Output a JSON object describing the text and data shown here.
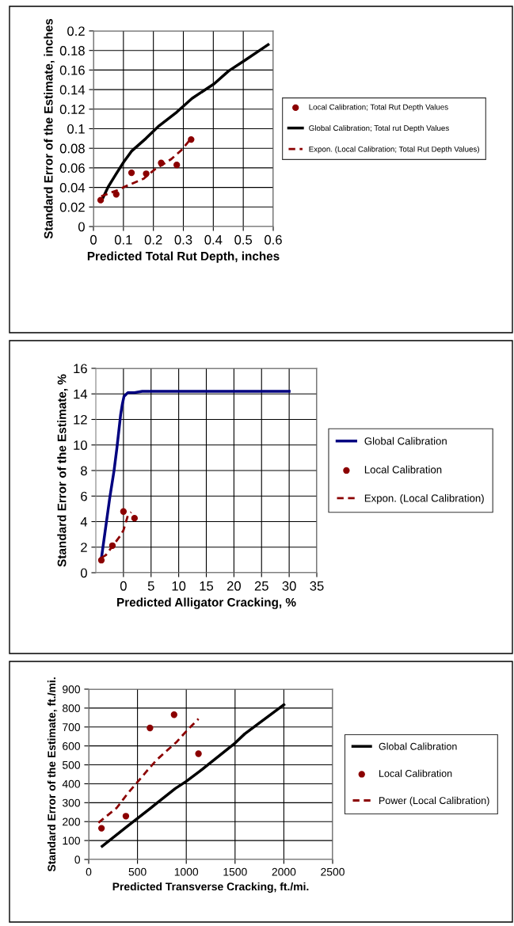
{
  "chart_data": [
    {
      "type": "line",
      "xlabel": "Predicted Total Rut Depth, inches",
      "ylabel": "Standard Error of the Estimate, inches",
      "xlim": [
        0,
        0.6
      ],
      "xticks": [
        0,
        0.1,
        0.2,
        0.3,
        0.4,
        0.5,
        0.6
      ],
      "ylim": [
        0,
        0.2
      ],
      "yticks": [
        0,
        0.02,
        0.04,
        0.06,
        0.08,
        0.1,
        0.12,
        0.14,
        0.16,
        0.18,
        0.2
      ],
      "grid": true,
      "legend": "right",
      "series": [
        {
          "name": "Local Calibration; Total Rut Depth Values",
          "type": "scatter",
          "marker": "circle",
          "color": "#8b0000",
          "x": [
            0.024,
            0.076,
            0.127,
            0.176,
            0.226,
            0.278,
            0.326
          ],
          "values": [
            0.027,
            0.033,
            0.055,
            0.054,
            0.065,
            0.063,
            0.089
          ]
        },
        {
          "name": "Global Calibration; Total rut Depth Values",
          "line_style": "solid",
          "color": "#000000",
          "x": [
            0.028,
            0.05,
            0.076,
            0.101,
            0.127,
            0.175,
            0.219,
            0.278,
            0.329,
            0.403,
            0.451,
            0.506,
            0.583
          ],
          "values": [
            0.027,
            0.041,
            0.054,
            0.066,
            0.077,
            0.09,
            0.103,
            0.117,
            0.131,
            0.146,
            0.159,
            0.17,
            0.186
          ]
        },
        {
          "name": "Expon. (Local Calibration; Total Rut Depth Values)",
          "line_style": "dashed",
          "color": "#8b0000",
          "x": [
            0.026,
            0.079,
            0.114,
            0.168,
            0.203,
            0.26,
            0.293,
            0.326
          ],
          "values": [
            0.031,
            0.037,
            0.042,
            0.049,
            0.058,
            0.069,
            0.078,
            0.09
          ]
        }
      ]
    },
    {
      "type": "line",
      "xlabel": "Predicted Alligator Cracking, %",
      "ylabel": "Standard Error of the Estimate, %",
      "xlim": [
        -5,
        35
      ],
      "xticks": [
        0,
        5,
        10,
        15,
        20,
        25,
        30,
        35
      ],
      "ylim": [
        0,
        16
      ],
      "yticks": [
        0,
        2,
        4,
        6,
        8,
        10,
        12,
        14,
        16
      ],
      "grid": true,
      "legend": "right",
      "series": [
        {
          "name": "Global Calibration",
          "line_style": "solid",
          "color": "#000080",
          "x": [
            -4.0,
            -2.5,
            -1.7,
            -1.2,
            -0.5,
            -0.2,
            0.1,
            0.8,
            2.0,
            3.4,
            30
          ],
          "values": [
            1.1,
            5.8,
            8.0,
            9.7,
            12.4,
            13.2,
            13.8,
            14.1,
            14.1,
            14.2,
            14.2
          ]
        },
        {
          "name": "Local Calibration",
          "type": "scatter",
          "marker": "circle",
          "color": "#8b0000",
          "x": [
            -4,
            -2,
            0,
            2
          ],
          "values": [
            0.98,
            2.12,
            4.79,
            4.27
          ]
        },
        {
          "name": "Expon. (Local Calibration)",
          "line_style": "dashed",
          "color": "#8b0000",
          "x": [
            -4,
            -3.2,
            -0.6,
            0,
            0.8,
            1.4
          ],
          "values": [
            1.17,
            1.37,
            2.88,
            3.32,
            4.48,
            4.74
          ]
        }
      ]
    },
    {
      "type": "line",
      "xlabel": "Predicted Transverse Cracking, ft./mi.",
      "ylabel": "Standard Error of the Estimate, ft./mi.",
      "xlim": [
        0,
        2500
      ],
      "xticks": [
        0,
        500,
        1000,
        1500,
        2000,
        2500
      ],
      "ylim": [
        0,
        900
      ],
      "yticks": [
        0,
        100,
        200,
        300,
        400,
        500,
        600,
        700,
        800,
        900
      ],
      "grid": true,
      "legend": "right",
      "series": [
        {
          "name": "Global Calibration",
          "line_style": "solid",
          "color": "#000000",
          "x": [
            138,
            388,
            638,
            888,
            1000,
            1138,
            1500,
            1600,
            2000
          ],
          "values": [
            70,
            172,
            273,
            375,
            413,
            466,
            615,
            664,
            818
          ]
        },
        {
          "name": "Local Calibration",
          "type": "scatter",
          "marker": "circle",
          "color": "#8b0000",
          "x": [
            131,
            381,
            628,
            875,
            1125
          ],
          "values": [
            165,
            229,
            695,
            765,
            559
          ]
        },
        {
          "name": "Power (Local Calibration)",
          "line_style": "dashed",
          "color": "#8b0000",
          "x": [
            100,
            288,
            397,
            594,
            694,
            903,
            1006,
            1125
          ],
          "values": [
            194,
            273,
            347,
            466,
            525,
            622,
            681,
            743
          ]
        }
      ]
    }
  ]
}
